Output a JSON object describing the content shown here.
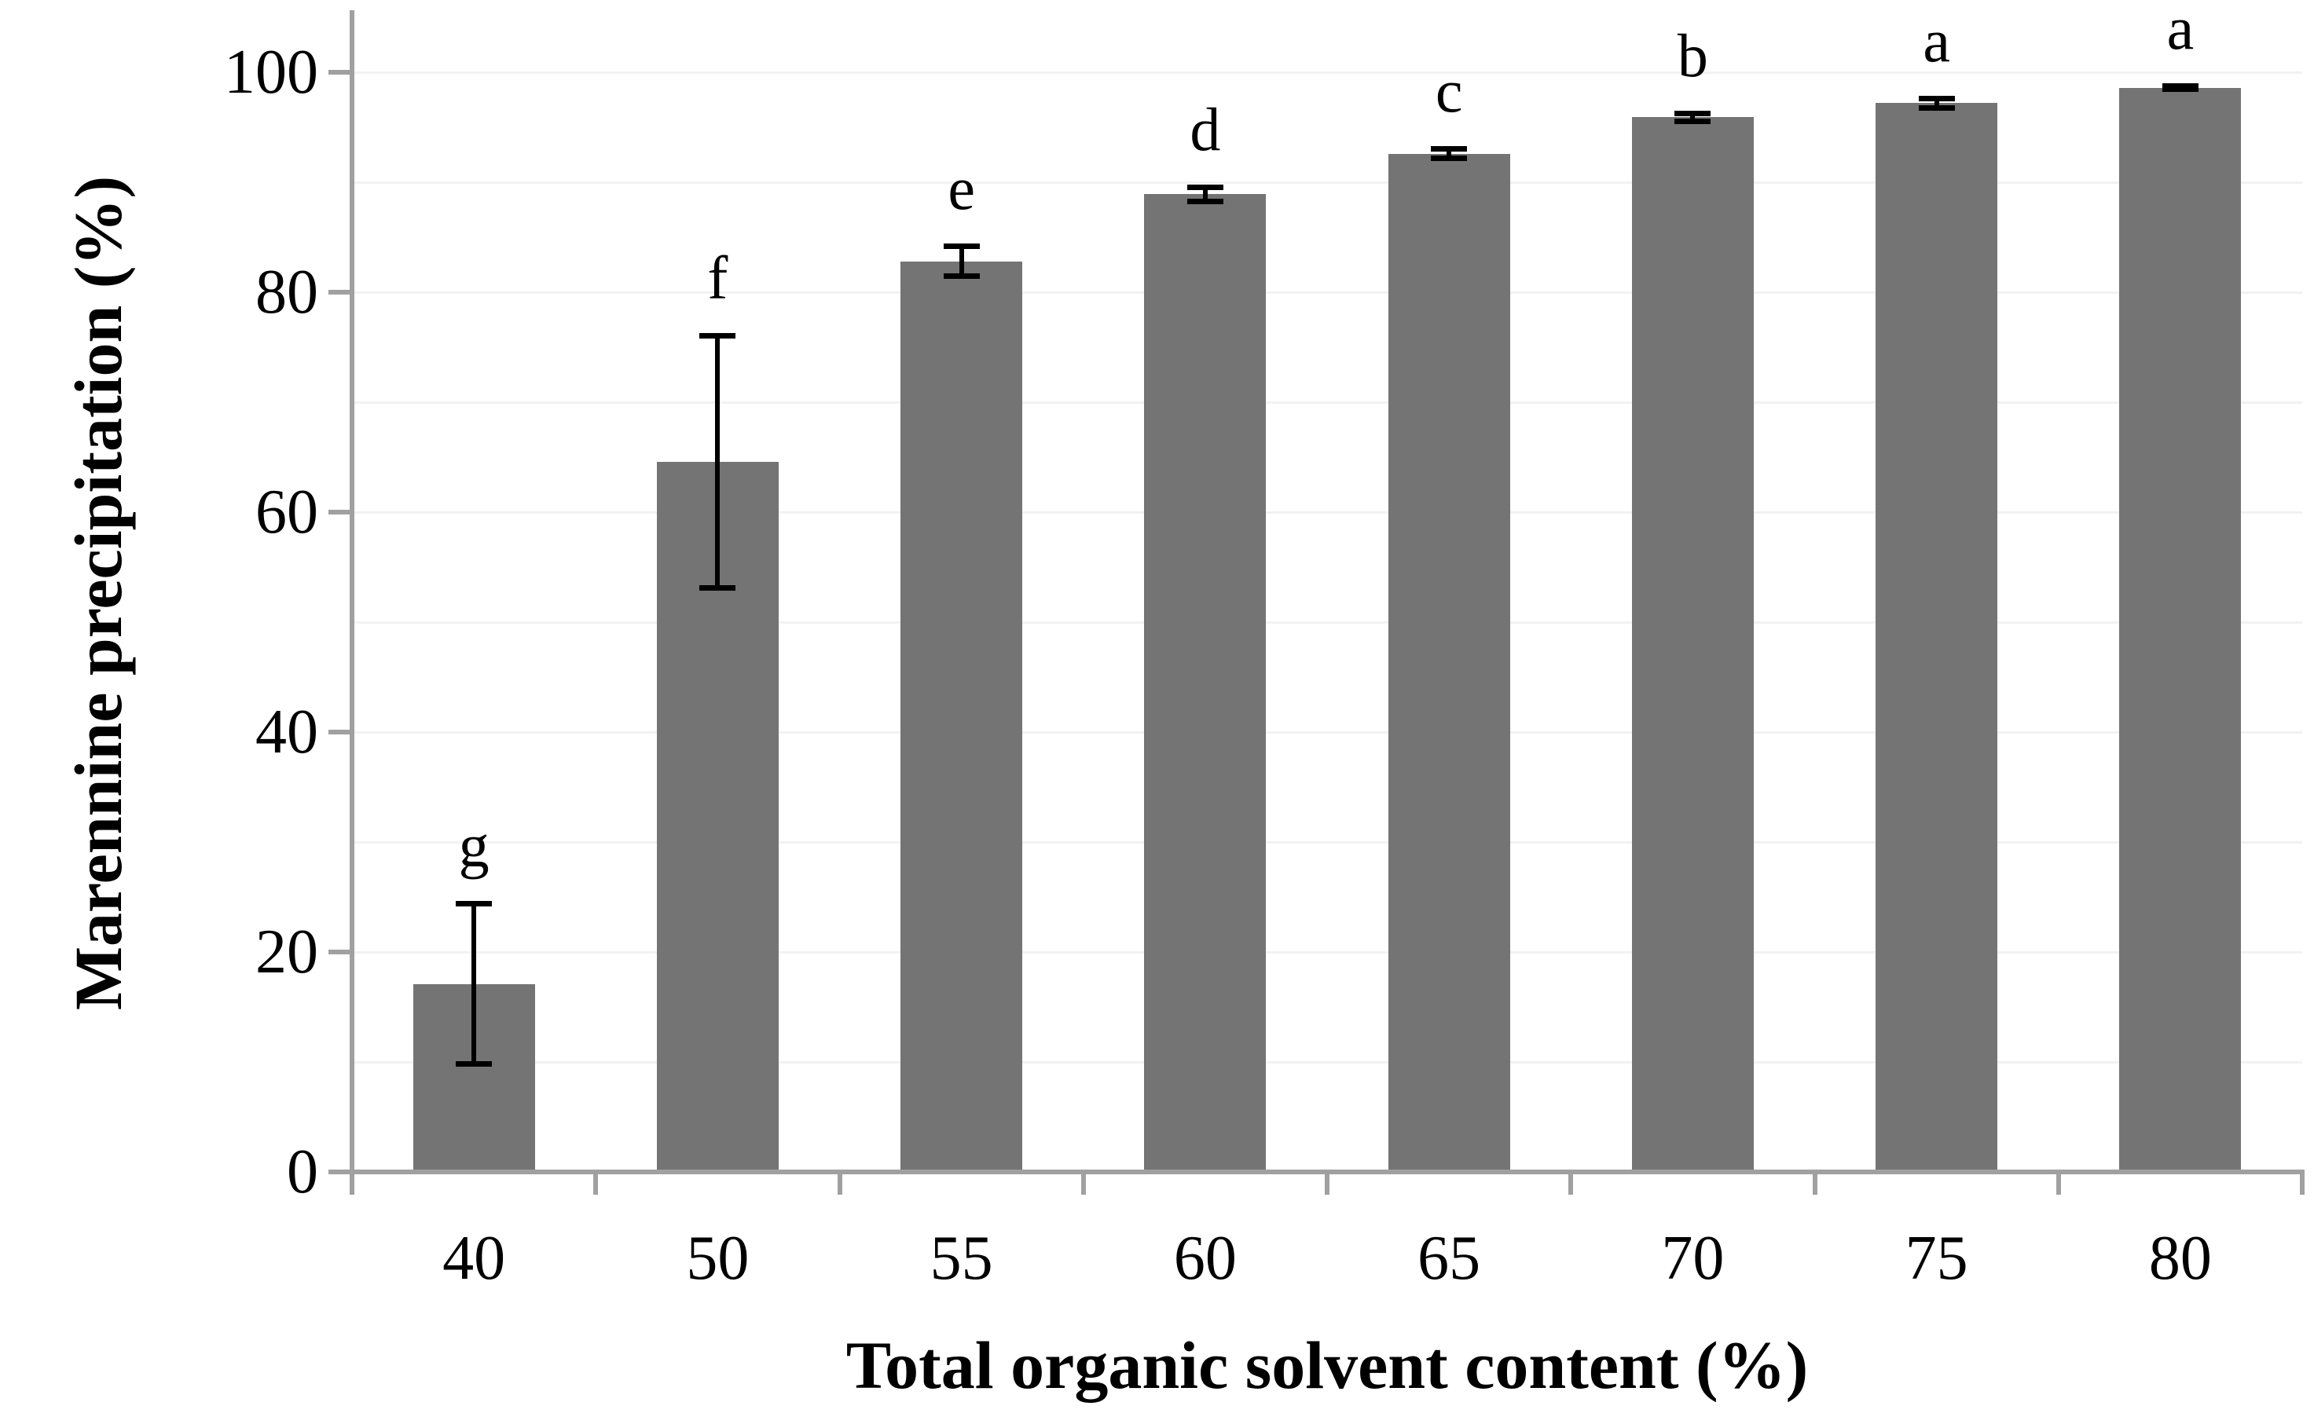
{
  "chart_data": {
    "type": "bar",
    "title": "",
    "categories": [
      "40",
      "50",
      "55",
      "60",
      "65",
      "70",
      "75",
      "80"
    ],
    "series": [
      {
        "name": "Marennine precipitation",
        "values": [
          17.1,
          64.6,
          82.8,
          88.9,
          92.6,
          95.9,
          97.2,
          98.6
        ],
        "errors": [
          7.3,
          11.5,
          1.4,
          0.7,
          0.45,
          0.4,
          0.45,
          0.2
        ],
        "significance_letters": [
          "g",
          "f",
          "e",
          "d",
          "c",
          "b",
          "a",
          "a"
        ]
      }
    ],
    "xlabel": "Total organic solvent content (%)",
    "ylabel": "Marennine precipitation (%)",
    "y_ticks": [
      0,
      20,
      40,
      60,
      80,
      100
    ],
    "y_tick_labels": [
      "0",
      "20",
      "40",
      "60",
      "80",
      "100"
    ],
    "gridline_step": 10,
    "ylim": [
      0,
      105
    ],
    "grid": "horizontal-minor-and-major",
    "legend": "none",
    "colors": {
      "bar_fill": "#747474",
      "axis_line": "#a0a0a0",
      "gridline": "#f2f2f2",
      "error_bar": "#000000",
      "text": "#000000",
      "background": "#ffffff"
    }
  }
}
